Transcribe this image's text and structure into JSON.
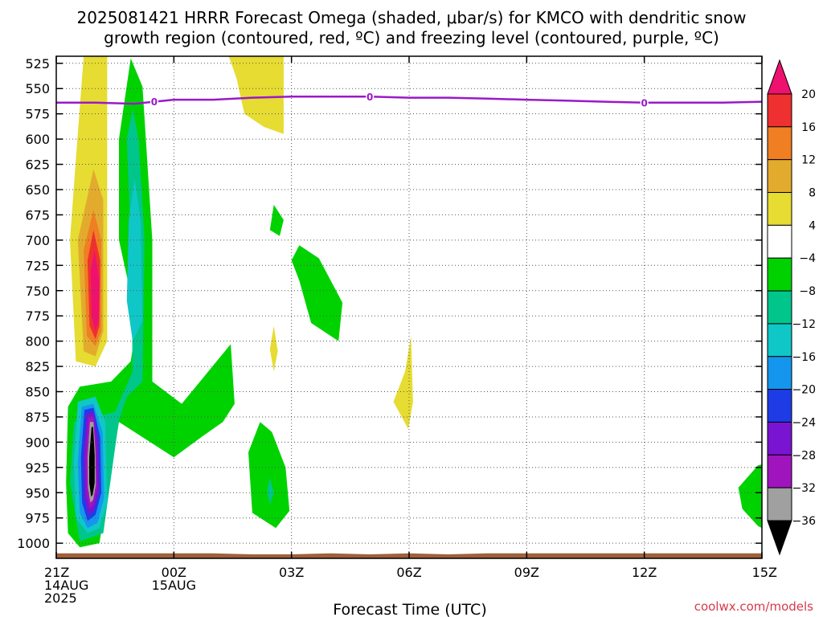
{
  "chart_data": {
    "type": "heatmap",
    "title_line1": "2025081421 HRRR Forecast Omega (shaded, μbar/s) for KMCO with dendritic snow",
    "title_line2": "growth region (contoured, red, ºC) and freezing level (contoured, purple, ºC)",
    "xlabel": "Forecast Time (UTC)",
    "credit": "coolwx.com/models",
    "x_ticks": [
      {
        "hour": 0,
        "lines": [
          "21Z",
          "14AUG",
          "2025"
        ]
      },
      {
        "hour": 3,
        "lines": [
          "00Z",
          "15AUG"
        ]
      },
      {
        "hour": 6,
        "lines": [
          "03Z"
        ]
      },
      {
        "hour": 9,
        "lines": [
          "06Z"
        ]
      },
      {
        "hour": 12,
        "lines": [
          "09Z"
        ]
      },
      {
        "hour": 15,
        "lines": [
          "12Z"
        ]
      },
      {
        "hour": 18,
        "lines": [
          "15Z"
        ]
      }
    ],
    "xlim": [
      0,
      18
    ],
    "y_ticks": [
      525,
      550,
      575,
      600,
      625,
      650,
      675,
      700,
      725,
      750,
      775,
      800,
      825,
      850,
      875,
      900,
      925,
      950,
      975,
      1000
    ],
    "ylim": [
      1015,
      518
    ],
    "grid": true,
    "colorbar": {
      "labels": [
        "20",
        "16",
        "12",
        "8",
        "4",
        "−4",
        "−8",
        "−12",
        "−16",
        "−20",
        "−24",
        "−28",
        "−32",
        "−36"
      ],
      "colors": [
        "#ee1170",
        "#ef3030",
        "#ef7f22",
        "#e3ab2e",
        "#e6dc32",
        "#ffffff",
        "#00d200",
        "#00c68c",
        "#10c7c7",
        "#1496ee",
        "#1e3ce6",
        "#7814d2",
        "#a014be",
        "#a0a0a0",
        "#000000"
      ]
    },
    "freezing_level": {
      "label": "0",
      "color": "#9a19c8",
      "hours": [
        0,
        1,
        2,
        2.5,
        3,
        4,
        5,
        6,
        7,
        8,
        9,
        10,
        11,
        12,
        13,
        14,
        15,
        16,
        17,
        18
      ],
      "pressure": [
        564,
        564,
        565,
        563,
        561,
        561,
        559,
        558,
        558,
        558,
        559,
        559,
        560,
        561,
        562,
        563,
        564,
        564,
        564,
        563
      ],
      "label_hours": [
        2.5,
        8,
        15
      ]
    },
    "omega_regions": [
      {
        "level": "4",
        "color": "#e6dc32",
        "points": [
          [
            0.7,
            518
          ],
          [
            1.3,
            518
          ],
          [
            1.3,
            800
          ],
          [
            1.0,
            825
          ],
          [
            0.5,
            820
          ],
          [
            0.35,
            700
          ],
          [
            0.5,
            620
          ]
        ]
      },
      {
        "level": "8",
        "color": "#e3ab2e",
        "points": [
          [
            0.95,
            630
          ],
          [
            1.2,
            660
          ],
          [
            1.2,
            790
          ],
          [
            1.0,
            815
          ],
          [
            0.7,
            810
          ],
          [
            0.55,
            700
          ]
        ]
      },
      {
        "level": "12",
        "color": "#ef7f22",
        "points": [
          [
            0.95,
            670
          ],
          [
            1.15,
            700
          ],
          [
            1.15,
            790
          ],
          [
            1.0,
            805
          ],
          [
            0.78,
            795
          ],
          [
            0.7,
            710
          ]
        ]
      },
      {
        "level": "16",
        "color": "#ef3030",
        "points": [
          [
            0.95,
            690
          ],
          [
            1.12,
            720
          ],
          [
            1.1,
            785
          ],
          [
            1.0,
            798
          ],
          [
            0.85,
            785
          ],
          [
            0.8,
            720
          ]
        ]
      },
      {
        "level": "20",
        "color": "#ee1170",
        "points": [
          [
            0.98,
            710
          ],
          [
            1.1,
            740
          ],
          [
            1.08,
            780
          ],
          [
            1.0,
            790
          ],
          [
            0.9,
            775
          ],
          [
            0.88,
            730
          ]
        ]
      },
      {
        "level": "4",
        "color": "#e6dc32",
        "points": [
          [
            4.4,
            518
          ],
          [
            5.8,
            518
          ],
          [
            5.8,
            595
          ],
          [
            5.3,
            588
          ],
          [
            4.8,
            575
          ],
          [
            4.6,
            540
          ]
        ]
      },
      {
        "level": "4",
        "color": "#e6dc32",
        "points": [
          [
            5.55,
            785
          ],
          [
            5.65,
            810
          ],
          [
            5.55,
            830
          ],
          [
            5.45,
            808
          ]
        ]
      },
      {
        "level": "4",
        "color": "#e6dc32",
        "points": [
          [
            9.05,
            795
          ],
          [
            9.1,
            860
          ],
          [
            8.98,
            887
          ],
          [
            8.6,
            860
          ],
          [
            8.9,
            830
          ]
        ]
      },
      {
        "level": "-4",
        "color": "#00d200",
        "points": [
          [
            1.9,
            520
          ],
          [
            2.2,
            548
          ],
          [
            2.45,
            700
          ],
          [
            2.45,
            840
          ],
          [
            3.2,
            862
          ],
          [
            4.45,
            803
          ],
          [
            4.55,
            862
          ],
          [
            4.25,
            880
          ],
          [
            3.7,
            895
          ],
          [
            3.0,
            915
          ],
          [
            2.2,
            895
          ],
          [
            1.6,
            880
          ],
          [
            1.1,
            1000
          ],
          [
            0.6,
            1004
          ],
          [
            0.3,
            990
          ],
          [
            0.25,
            940
          ],
          [
            0.3,
            865
          ],
          [
            0.6,
            845
          ],
          [
            1.4,
            840
          ],
          [
            1.9,
            820
          ],
          [
            2.05,
            780
          ],
          [
            1.6,
            700
          ],
          [
            1.6,
            600
          ]
        ]
      },
      {
        "level": "-4",
        "color": "#00d200",
        "points": [
          [
            5.55,
            665
          ],
          [
            5.8,
            680
          ],
          [
            5.7,
            696
          ],
          [
            5.45,
            690
          ]
        ]
      },
      {
        "level": "-4",
        "color": "#00d200",
        "points": [
          [
            6.2,
            705
          ],
          [
            6.7,
            718
          ],
          [
            7.3,
            762
          ],
          [
            7.2,
            800
          ],
          [
            6.5,
            782
          ],
          [
            6.2,
            740
          ],
          [
            6.0,
            720
          ]
        ]
      },
      {
        "level": "-4",
        "color": "#00d200",
        "points": [
          [
            5.2,
            880
          ],
          [
            5.5,
            890
          ],
          [
            5.85,
            925
          ],
          [
            5.95,
            968
          ],
          [
            5.6,
            985
          ],
          [
            5.0,
            970
          ],
          [
            4.9,
            910
          ]
        ]
      },
      {
        "level": "-4",
        "color": "#00d200",
        "points": [
          [
            17.9,
            923
          ],
          [
            18,
            922
          ],
          [
            18,
            985
          ],
          [
            17.9,
            983
          ],
          [
            17.5,
            966
          ],
          [
            17.4,
            945
          ]
        ]
      },
      {
        "level": "-8",
        "color": "#00c68c",
        "points": [
          [
            1.95,
            570
          ],
          [
            2.1,
            600
          ],
          [
            2.25,
            700
          ],
          [
            2.2,
            840
          ],
          [
            1.8,
            855
          ],
          [
            1.6,
            878
          ],
          [
            1.2,
            990
          ],
          [
            0.6,
            998
          ],
          [
            0.35,
            940
          ],
          [
            0.45,
            880
          ],
          [
            1.5,
            870
          ],
          [
            1.95,
            830
          ],
          [
            1.9,
            700
          ],
          [
            1.8,
            600
          ]
        ]
      },
      {
        "level": "-8",
        "color": "#00c68c",
        "points": [
          [
            5.45,
            935
          ],
          [
            5.55,
            950
          ],
          [
            5.45,
            962
          ],
          [
            5.38,
            948
          ]
        ]
      },
      {
        "level": "-12",
        "color": "#10c7c7",
        "points": [
          [
            2.0,
            640
          ],
          [
            2.15,
            680
          ],
          [
            2.2,
            780
          ],
          [
            1.95,
            800
          ],
          [
            1.8,
            760
          ],
          [
            1.85,
            680
          ]
        ]
      },
      {
        "level": "-12",
        "color": "#10c7c7",
        "points": [
          [
            0.55,
            860
          ],
          [
            1.0,
            855
          ],
          [
            1.25,
            880
          ],
          [
            1.3,
            960
          ],
          [
            1.1,
            985
          ],
          [
            0.8,
            990
          ],
          [
            0.5,
            975
          ],
          [
            0.45,
            920
          ]
        ]
      },
      {
        "level": "-16",
        "color": "#1496ee",
        "points": [
          [
            0.65,
            865
          ],
          [
            0.95,
            862
          ],
          [
            1.18,
            890
          ],
          [
            1.22,
            955
          ],
          [
            1.05,
            980
          ],
          [
            0.8,
            985
          ],
          [
            0.6,
            970
          ],
          [
            0.55,
            920
          ]
        ]
      },
      {
        "level": "-20",
        "color": "#1e3ce6",
        "points": [
          [
            0.72,
            868
          ],
          [
            0.95,
            866
          ],
          [
            1.12,
            895
          ],
          [
            1.15,
            950
          ],
          [
            1.0,
            972
          ],
          [
            0.8,
            978
          ],
          [
            0.66,
            960
          ],
          [
            0.63,
            915
          ]
        ]
      },
      {
        "level": "-24",
        "color": "#7814d2",
        "points": [
          [
            0.77,
            872
          ],
          [
            0.95,
            870
          ],
          [
            1.07,
            900
          ],
          [
            1.1,
            948
          ],
          [
            0.96,
            968
          ],
          [
            0.82,
            972
          ],
          [
            0.72,
            955
          ],
          [
            0.7,
            915
          ]
        ]
      },
      {
        "level": "-28",
        "color": "#a014be",
        "points": [
          [
            0.82,
            876
          ],
          [
            0.95,
            875
          ],
          [
            1.03,
            905
          ],
          [
            1.05,
            945
          ],
          [
            0.95,
            962
          ],
          [
            0.85,
            966
          ],
          [
            0.77,
            950
          ],
          [
            0.75,
            915
          ]
        ]
      },
      {
        "level": "-32",
        "color": "#a0a0a0",
        "points": [
          [
            0.86,
            880
          ],
          [
            0.95,
            880
          ],
          [
            1.0,
            910
          ],
          [
            1.01,
            942
          ],
          [
            0.94,
            957
          ],
          [
            0.87,
            960
          ],
          [
            0.81,
            945
          ],
          [
            0.8,
            915
          ]
        ]
      },
      {
        "level": "-36",
        "color": "#000000",
        "points": [
          [
            0.9,
            885
          ],
          [
            0.94,
            885
          ],
          [
            0.98,
            913
          ],
          [
            0.98,
            940
          ],
          [
            0.93,
            952
          ],
          [
            0.89,
            954
          ],
          [
            0.84,
            940
          ],
          [
            0.84,
            915
          ]
        ]
      }
    ],
    "surface": {
      "color": "#a0603a",
      "hours": [
        0,
        2,
        4,
        5,
        6,
        7,
        8,
        9,
        10,
        11,
        12,
        14,
        16,
        18
      ],
      "pressure": [
        1010,
        1010,
        1010,
        1011,
        1011,
        1010,
        1011,
        1010,
        1011,
        1010,
        1010,
        1010,
        1010,
        1010
      ]
    }
  }
}
